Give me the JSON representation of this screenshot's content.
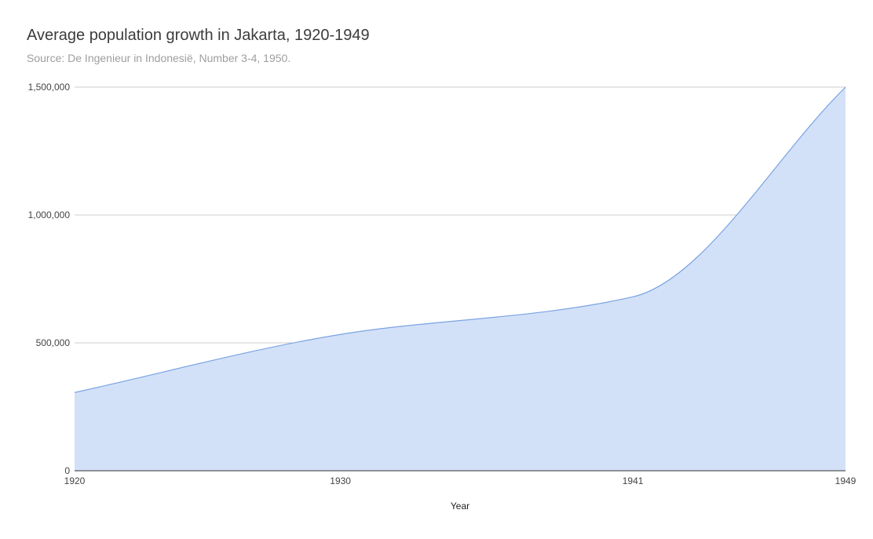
{
  "chart_data": {
    "type": "area",
    "title": "Average population growth in Jakarta, 1920-1949",
    "subtitle": "Source: De Ingenieur in Indonesië, Number 3-4, 1950.",
    "xlabel": "Year",
    "ylabel": "",
    "x": [
      1920,
      1930,
      1941,
      1949
    ],
    "x_tick_labels": [
      "1920",
      "1930",
      "1941",
      "1949"
    ],
    "series": [
      {
        "values": [
          306000,
          533000,
          680000,
          1500000
        ]
      }
    ],
    "ylim": [
      0,
      1500000
    ],
    "y_ticks": [
      0,
      500000,
      1000000,
      1500000
    ],
    "y_tick_labels": [
      "0",
      "500,000",
      "1,000,000",
      "1,500,000"
    ],
    "grid": true,
    "legend": "none",
    "colors": {
      "fill": "#d3e1f8",
      "line": "#7aa3e3",
      "grid": "#cccccc",
      "baseline": "#333333"
    }
  }
}
